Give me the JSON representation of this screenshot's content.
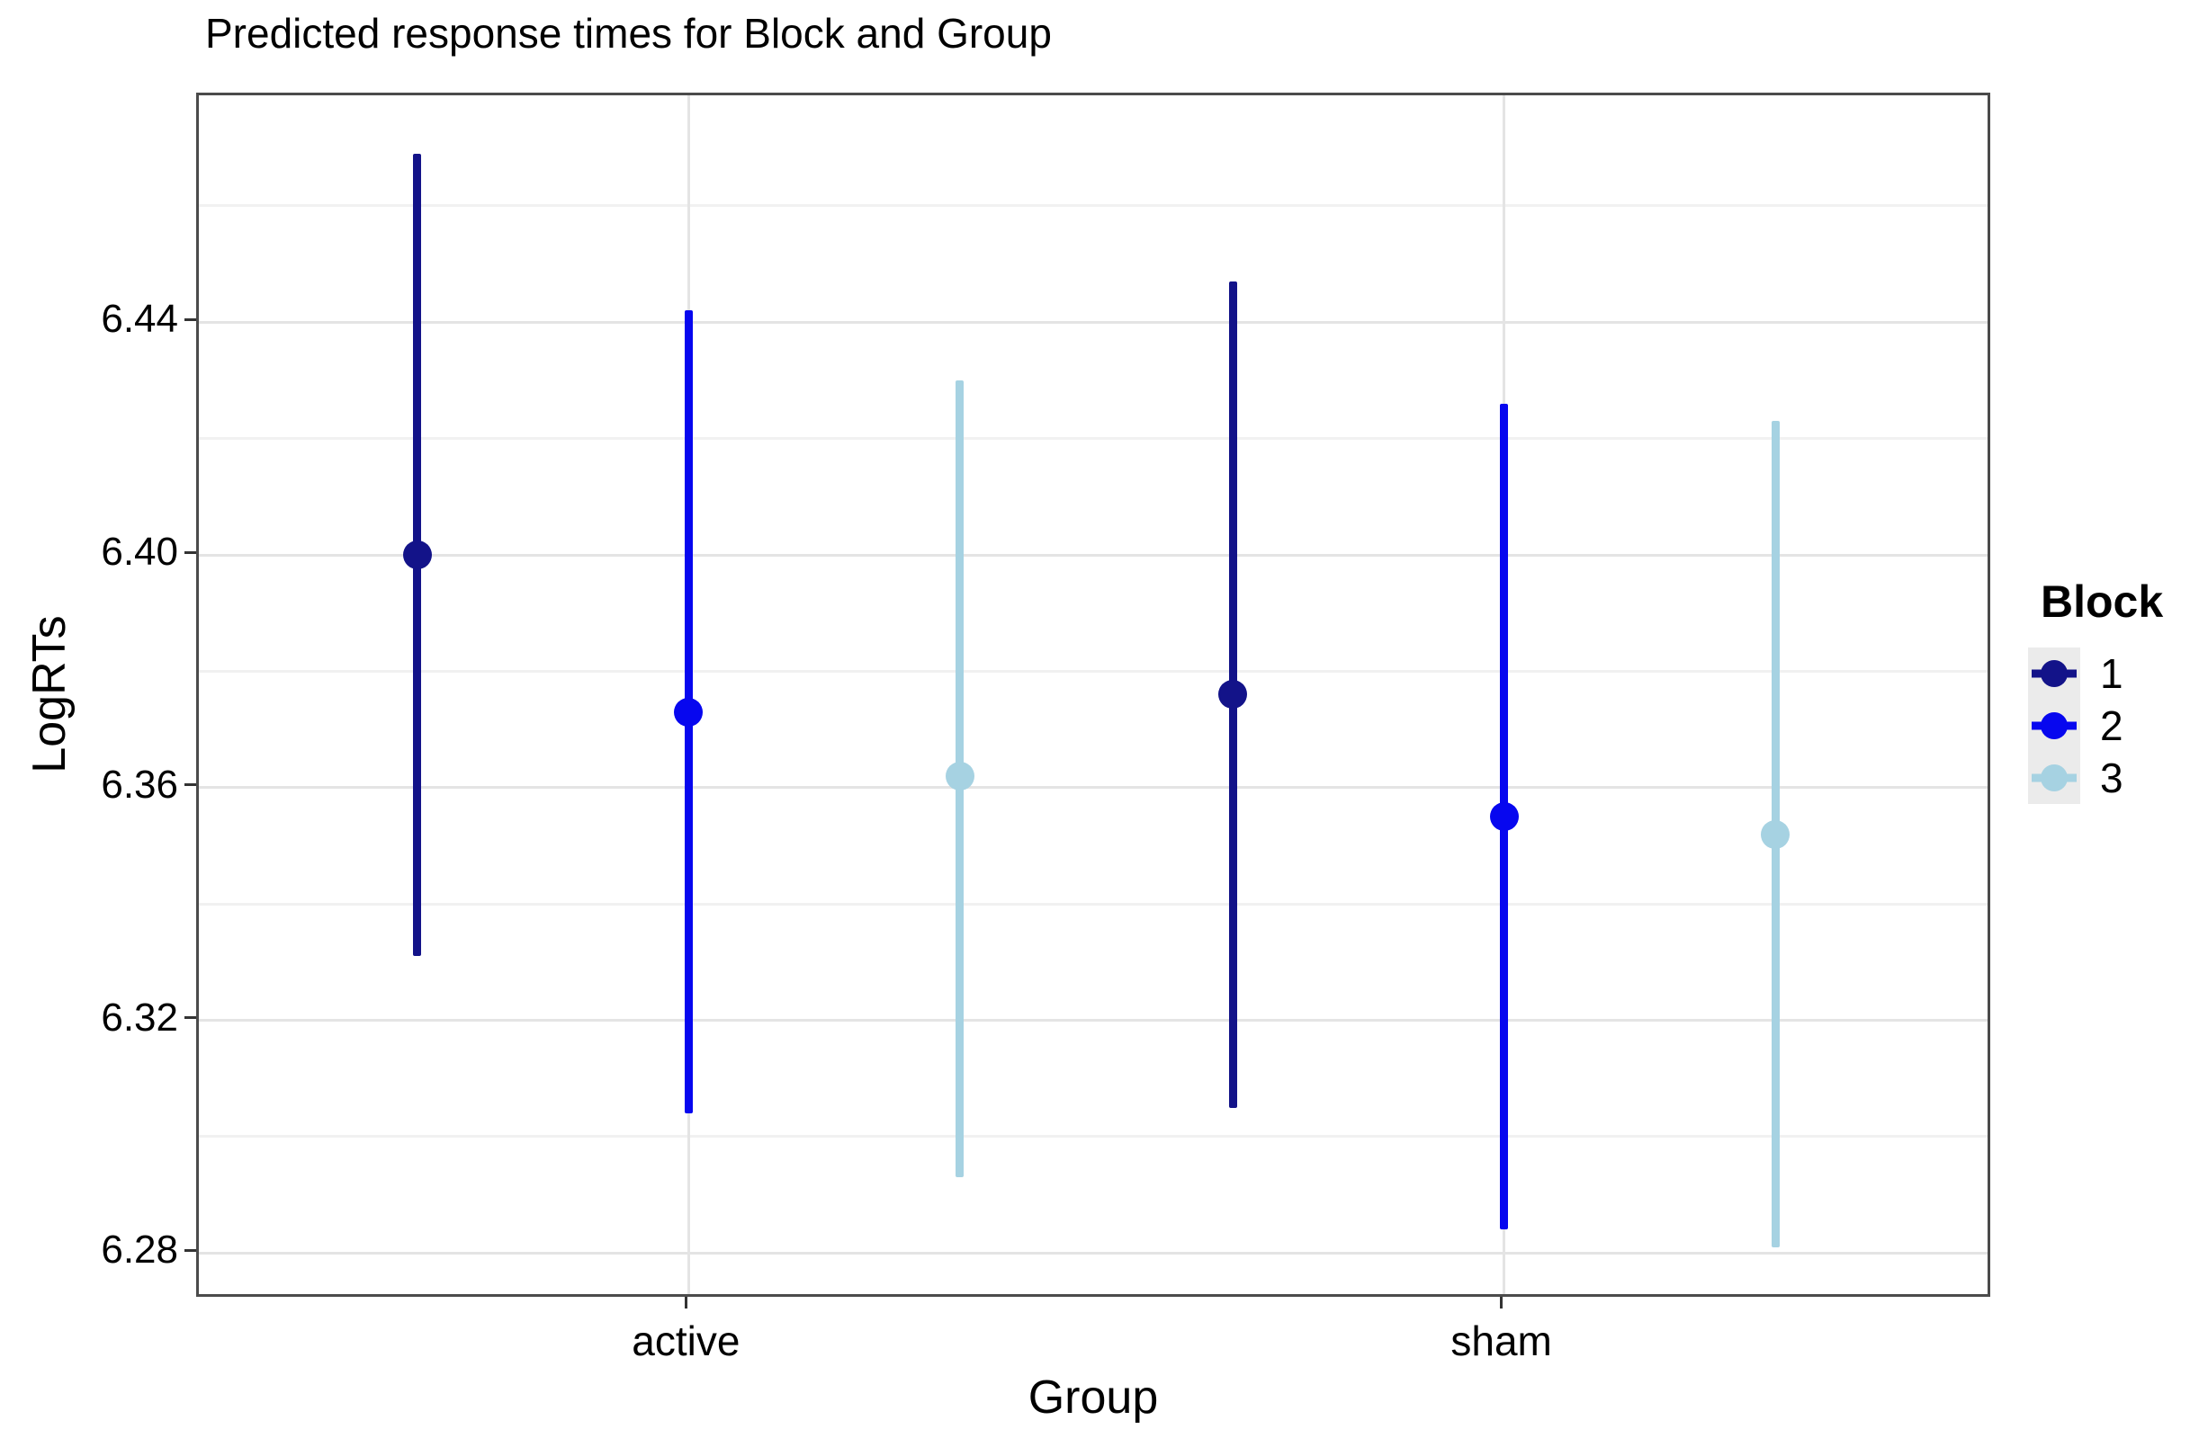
{
  "figure": {
    "title": "Predicted response times for Block and Group",
    "x_axis_title": "Group",
    "y_axis_title": "LogRTs",
    "legend_title": "Block"
  },
  "colors": {
    "block1": "#131389",
    "block2": "#0707ef",
    "block3": "#a6d2e2",
    "grid_major": "#e4e4e4",
    "grid_minor": "#f1f1f1",
    "panel_border": "#4b4b4b",
    "legend_key_bg": "#ebebeb",
    "text": "#000000"
  },
  "chart_data": {
    "type": "pointrange",
    "title": "Predicted response times for Block and Group",
    "xlabel": "Group",
    "ylabel": "LogRTs",
    "categories": [
      "active",
      "sham"
    ],
    "y_ticks": [
      6.28,
      6.32,
      6.36,
      6.4,
      6.44
    ],
    "y_tick_decimals": 2,
    "y_minor_ticks": [
      6.3,
      6.34,
      6.38,
      6.42,
      6.46
    ],
    "ylim": [
      6.272,
      6.479
    ],
    "grid": true,
    "legend": {
      "title": "Block",
      "position": "right"
    },
    "series": [
      {
        "name": "1",
        "color_key": "block1",
        "points": [
          {
            "group": "active",
            "y": 6.4,
            "ymin": 6.331,
            "ymax": 6.469
          },
          {
            "group": "sham",
            "y": 6.376,
            "ymin": 6.305,
            "ymax": 6.447
          }
        ]
      },
      {
        "name": "2",
        "color_key": "block2",
        "points": [
          {
            "group": "active",
            "y": 6.373,
            "ymin": 6.304,
            "ymax": 6.442
          },
          {
            "group": "sham",
            "y": 6.355,
            "ymin": 6.284,
            "ymax": 6.426
          }
        ]
      },
      {
        "name": "3",
        "color_key": "block3",
        "points": [
          {
            "group": "active",
            "y": 6.362,
            "ymin": 6.293,
            "ymax": 6.43
          },
          {
            "group": "sham",
            "y": 6.352,
            "ymin": 6.281,
            "ymax": 6.423
          }
        ]
      }
    ]
  }
}
